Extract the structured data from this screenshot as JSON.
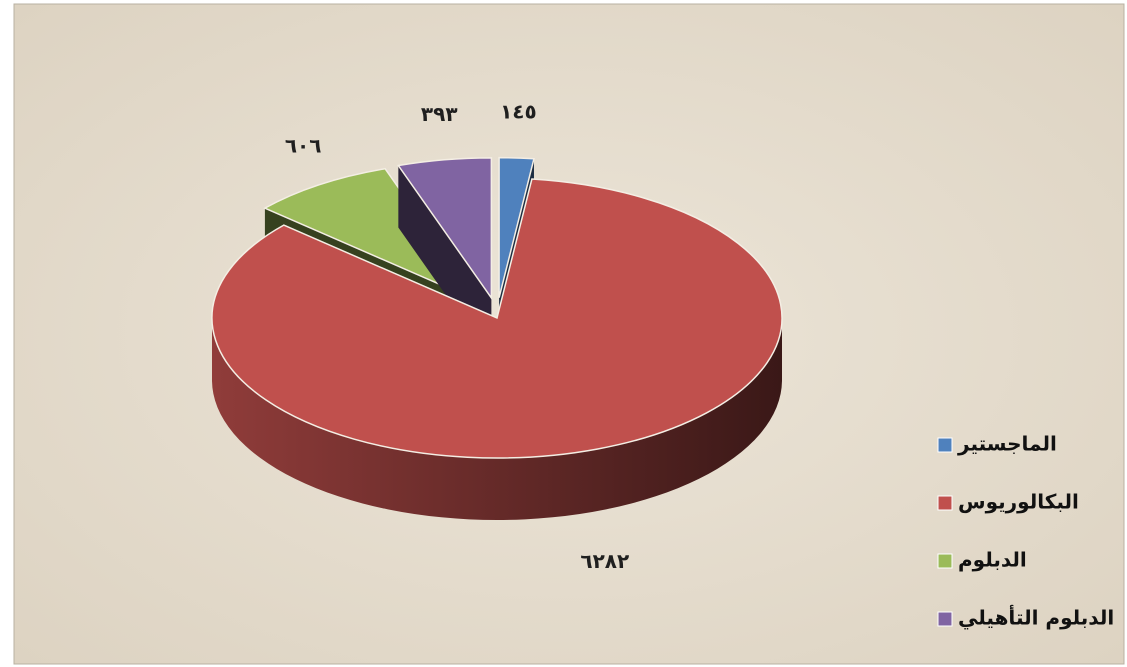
{
  "chart_data": {
    "type": "pie",
    "categories": [
      "الماجستير",
      "البكالوريوس",
      "الدبلوم",
      "الدبلوم التأهيلي"
    ],
    "values": [
      145,
      6282,
      606,
      393
    ],
    "value_labels": [
      "١٤٥",
      "٦٢٨٢",
      "٦٠٦",
      "٣٩٣"
    ],
    "colors": [
      "#4f81bd",
      "#c0504d",
      "#9bbb59",
      "#8064a2"
    ],
    "legend": "bottom-right"
  }
}
